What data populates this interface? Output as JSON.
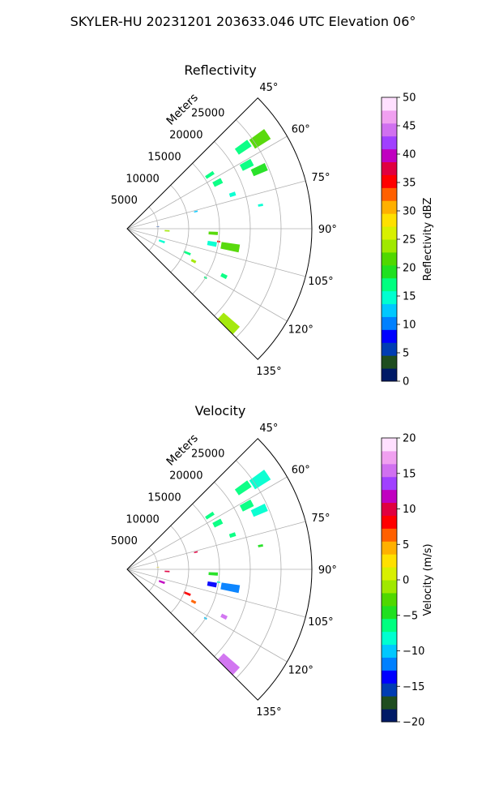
{
  "suptitle": "SKYLER-HU  20231201  203633.046 UTC Elevation 06°",
  "range_label": "Meters",
  "chart_data": [
    {
      "type": "heatmap",
      "projection": "polar-sector",
      "title": "Reflectivity",
      "azimuth_range_deg": [
        45,
        135
      ],
      "range_max_m": 30000,
      "theta_ticks": [
        "45°",
        "60°",
        "75°",
        "90°",
        "105°",
        "120°",
        "135°"
      ],
      "theta_tick_values": [
        45,
        60,
        75,
        90,
        105,
        120,
        135
      ],
      "r_ticks": [
        "5000",
        "10000",
        "15000",
        "20000",
        "25000"
      ],
      "r_tick_values": [
        5000,
        10000,
        15000,
        20000,
        25000
      ],
      "grid": true,
      "colorbar": {
        "label": "Reflectivity dBZ",
        "min": 0,
        "max": 50,
        "ticks": [
          "0",
          "5",
          "10",
          "15",
          "20",
          "25",
          "30",
          "35",
          "40",
          "45",
          "50"
        ],
        "tick_values": [
          0,
          5,
          10,
          15,
          20,
          25,
          30,
          35,
          40,
          45,
          50
        ],
        "colors": [
          "#001a66",
          "#1f4d1f",
          "#003db3",
          "#0000ff",
          "#0080ff",
          "#00c8ff",
          "#00ffd0",
          "#00ff80",
          "#20e020",
          "#50d800",
          "#a0e800",
          "#d8f000",
          "#ffe000",
          "#ffb000",
          "#ff6000",
          "#ff0000",
          "#e00040",
          "#c000c0",
          "#a040ff",
          "#d070f0",
          "#f0a0f0",
          "#ffe0ff"
        ]
      },
      "echoes": [
        {
          "az": 56,
          "r": 26000,
          "value": 22,
          "az_w": 4,
          "r_w": 3000
        },
        {
          "az": 55,
          "r": 23000,
          "value": 16,
          "az_w": 3,
          "r_w": 2500
        },
        {
          "az": 62,
          "r": 22000,
          "value": 18,
          "az_w": 3,
          "r_w": 2000
        },
        {
          "az": 66,
          "r": 23500,
          "value": 19,
          "az_w": 3,
          "r_w": 2500
        },
        {
          "az": 57,
          "r": 16000,
          "value": 17,
          "az_w": 2,
          "r_w": 1500
        },
        {
          "az": 63,
          "r": 16500,
          "value": 17,
          "az_w": 3,
          "r_w": 1500
        },
        {
          "az": 72,
          "r": 18000,
          "value": 15,
          "az_w": 2,
          "r_w": 1000
        },
        {
          "az": 80,
          "r": 22000,
          "value": 15,
          "az_w": 1,
          "r_w": 800
        },
        {
          "az": 76,
          "r": 11500,
          "value": 12,
          "az_w": 1,
          "r_w": 600
        },
        {
          "az": 93,
          "r": 14000,
          "value": 22,
          "az_w": 2,
          "r_w": 1500
        },
        {
          "az": 100,
          "r": 14000,
          "value": 14,
          "az_w": 3,
          "r_w": 1500
        },
        {
          "az": 100,
          "r": 17000,
          "value": 21,
          "az_w": 4,
          "r_w": 3000
        },
        {
          "az": 98,
          "r": 15000,
          "value": 36,
          "az_w": 1,
          "r_w": 500
        },
        {
          "az": 93,
          "r": 6500,
          "value": 24,
          "az_w": 2,
          "r_w": 800
        },
        {
          "az": 86,
          "r": 5000,
          "value": 6,
          "az_w": 1,
          "r_w": 400
        },
        {
          "az": 110,
          "r": 6000,
          "value": 14,
          "az_w": 3,
          "r_w": 1000
        },
        {
          "az": 112,
          "r": 10500,
          "value": 17,
          "az_w": 2,
          "r_w": 1200
        },
        {
          "az": 116,
          "r": 12000,
          "value": 24,
          "az_w": 2,
          "r_w": 800
        },
        {
          "az": 116,
          "r": 17500,
          "value": 17,
          "az_w": 2,
          "r_w": 1000
        },
        {
          "az": 133,
          "r": 22500,
          "value": 23,
          "az_w": 4,
          "r_w": 3500
        },
        {
          "az": 122,
          "r": 15000,
          "value": 16,
          "az_w": 1,
          "r_w": 500
        }
      ]
    },
    {
      "type": "heatmap",
      "projection": "polar-sector",
      "title": "Velocity",
      "azimuth_range_deg": [
        45,
        135
      ],
      "range_max_m": 30000,
      "theta_ticks": [
        "45°",
        "60°",
        "75°",
        "90°",
        "105°",
        "120°",
        "135°"
      ],
      "theta_tick_values": [
        45,
        60,
        75,
        90,
        105,
        120,
        135
      ],
      "r_ticks": [
        "5000",
        "10000",
        "15000",
        "20000",
        "25000"
      ],
      "r_tick_values": [
        5000,
        10000,
        15000,
        20000,
        25000
      ],
      "grid": true,
      "colorbar": {
        "label": "Velocity (m/s)",
        "min": -20,
        "max": 20,
        "ticks": [
          "−20",
          "−15",
          "−10",
          "−5",
          "0",
          "5",
          "10",
          "15",
          "20"
        ],
        "tick_values": [
          -20,
          -15,
          -10,
          -5,
          0,
          5,
          10,
          15,
          20
        ],
        "colors": [
          "#001a66",
          "#1f4d1f",
          "#003db3",
          "#0000ff",
          "#0080ff",
          "#00c8ff",
          "#00ffd0",
          "#00ff80",
          "#20e020",
          "#50d800",
          "#a0e800",
          "#d8f000",
          "#ffe000",
          "#ffb000",
          "#ff6000",
          "#ff0000",
          "#e00040",
          "#c000c0",
          "#a040ff",
          "#d070f0",
          "#f0a0f0",
          "#ffe0ff"
        ]
      },
      "echoes": [
        {
          "az": 56,
          "r": 26000,
          "value": -8,
          "az_w": 4,
          "r_w": 3000
        },
        {
          "az": 55,
          "r": 23000,
          "value": -7,
          "az_w": 3,
          "r_w": 2500
        },
        {
          "az": 62,
          "r": 22000,
          "value": -7,
          "az_w": 3,
          "r_w": 2000
        },
        {
          "az": 66,
          "r": 23500,
          "value": -8,
          "az_w": 3,
          "r_w": 2500
        },
        {
          "az": 57,
          "r": 16000,
          "value": -6,
          "az_w": 2,
          "r_w": 1500
        },
        {
          "az": 63,
          "r": 16500,
          "value": -6,
          "az_w": 3,
          "r_w": 1500
        },
        {
          "az": 72,
          "r": 18000,
          "value": -6,
          "az_w": 2,
          "r_w": 1000
        },
        {
          "az": 80,
          "r": 22000,
          "value": -5,
          "az_w": 1,
          "r_w": 800
        },
        {
          "az": 76,
          "r": 11500,
          "value": 10,
          "az_w": 1,
          "r_w": 600
        },
        {
          "az": 93,
          "r": 14000,
          "value": -5,
          "az_w": 2,
          "r_w": 1500
        },
        {
          "az": 100,
          "r": 14000,
          "value": -14,
          "az_w": 3,
          "r_w": 1500
        },
        {
          "az": 100,
          "r": 17000,
          "value": -11,
          "az_w": 4,
          "r_w": 3000
        },
        {
          "az": 98,
          "r": 15000,
          "value": -8,
          "az_w": 1,
          "r_w": 500
        },
        {
          "az": 93,
          "r": 6500,
          "value": 10,
          "az_w": 2,
          "r_w": 800
        },
        {
          "az": 86,
          "r": 5000,
          "value": 3,
          "az_w": 1,
          "r_w": 400
        },
        {
          "az": 110,
          "r": 6000,
          "value": 11,
          "az_w": 3,
          "r_w": 1000
        },
        {
          "az": 112,
          "r": 10500,
          "value": 8,
          "az_w": 2,
          "r_w": 1200
        },
        {
          "az": 116,
          "r": 12000,
          "value": 6,
          "az_w": 2,
          "r_w": 800
        },
        {
          "az": 116,
          "r": 17500,
          "value": 16,
          "az_w": 2,
          "r_w": 1000
        },
        {
          "az": 133,
          "r": 22500,
          "value": 16,
          "az_w": 4,
          "r_w": 3500
        },
        {
          "az": 122,
          "r": 15000,
          "value": -10,
          "az_w": 1,
          "r_w": 500
        }
      ]
    }
  ]
}
